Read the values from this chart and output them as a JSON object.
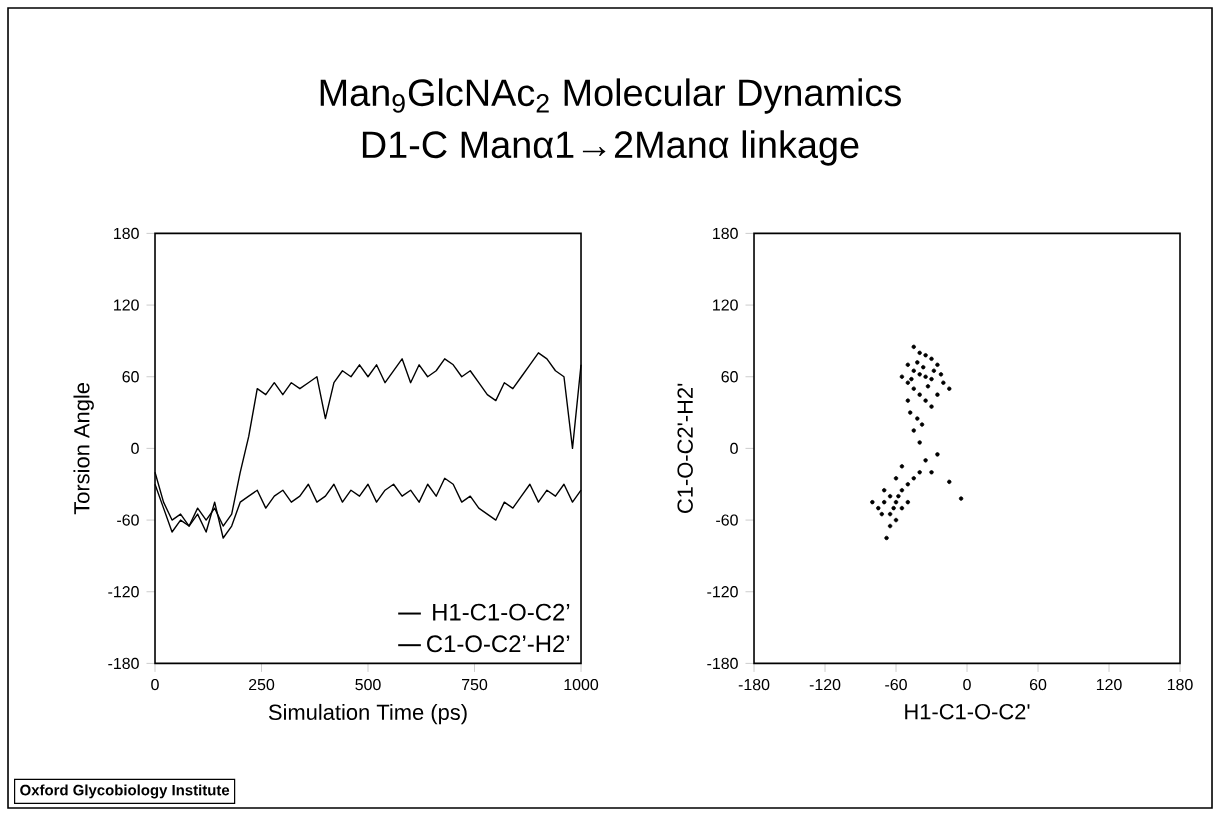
{
  "chart_data": [
    {
      "type": "line",
      "title": "Man$_{9}$GlcNAc$_{2}$ Molecular Dynamics",
      "subtitle": "D1-C  Manα1→2Manα linkage",
      "xlabel": "Simulation Time (ps)",
      "ylabel": "Torsion Angle",
      "annotations": [
        "Oxford Glycobiology Institute"
      ],
      "x": [
        0,
        20,
        40,
        60,
        80,
        100,
        120,
        140,
        160,
        180,
        200,
        220,
        240,
        260,
        280,
        300,
        320,
        340,
        360,
        380,
        400,
        420,
        440,
        460,
        480,
        500,
        520,
        540,
        560,
        580,
        600,
        620,
        640,
        660,
        680,
        700,
        720,
        740,
        760,
        780,
        800,
        820,
        840,
        860,
        880,
        900,
        920,
        940,
        960,
        980,
        1000
      ],
      "series": [
        {
          "name": "H1-C1-O-C2’",
          "color": "#000000",
          "values": [
            -30,
            -50,
            -70,
            -60,
            -65,
            -55,
            -70,
            -45,
            -75,
            -65,
            -45,
            -40,
            -35,
            -50,
            -40,
            -35,
            -45,
            -40,
            -30,
            -45,
            -40,
            -30,
            -45,
            -35,
            -40,
            -30,
            -45,
            -35,
            -30,
            -40,
            -35,
            -45,
            -30,
            -40,
            -25,
            -30,
            -45,
            -40,
            -50,
            -55,
            -60,
            -45,
            -50,
            -40,
            -30,
            -45,
            -35,
            -40,
            -30,
            -45,
            -35
          ]
        },
        {
          "name": "C1-O-C2’-H2’",
          "color": "#000000",
          "values": [
            -20,
            -45,
            -60,
            -55,
            -65,
            -50,
            -60,
            -50,
            -65,
            -55,
            -20,
            10,
            50,
            45,
            55,
            45,
            55,
            50,
            55,
            60,
            25,
            55,
            65,
            60,
            70,
            60,
            70,
            55,
            65,
            75,
            55,
            70,
            60,
            65,
            75,
            70,
            60,
            65,
            55,
            45,
            40,
            55,
            50,
            60,
            70,
            80,
            75,
            65,
            60,
            0,
            70
          ]
        }
      ],
      "xlim": [
        0,
        1000
      ],
      "xticks": [
        0,
        250,
        500,
        750,
        1000
      ],
      "ylim": [
        -180,
        180
      ],
      "yticks": [
        -180,
        -120,
        -60,
        0,
        60,
        120,
        180
      ],
      "legend": "bottom right",
      "marker": "none",
      "line_style": "solid"
    },
    {
      "type": "scatter",
      "xlabel": "H1-C1-O-C2'",
      "ylabel": "C1-O-C2'-H2'",
      "color": "#000000",
      "marker": "circle",
      "x": [
        -45,
        -40,
        -35,
        -30,
        -25,
        -50,
        -45,
        -40,
        -35,
        -30,
        -20,
        -15,
        -50,
        -45,
        -40,
        -35,
        -30,
        -25,
        -55,
        -48,
        -42,
        -38,
        -45,
        -50,
        -28,
        -22,
        -33,
        -42,
        -37,
        -47,
        -65,
        -70,
        -75,
        -60,
        -55,
        -65,
        -60,
        -70,
        -80,
        -55,
        -50,
        -45,
        -40,
        -60,
        -55,
        -65,
        -68,
        -58,
        -50,
        -62,
        -72,
        -5,
        -15,
        -25,
        -30,
        -40,
        -35
      ],
      "values": [
        85,
        80,
        78,
        75,
        70,
        70,
        65,
        62,
        60,
        58,
        55,
        50,
        55,
        50,
        45,
        40,
        35,
        45,
        60,
        30,
        25,
        20,
        15,
        40,
        65,
        62,
        52,
        72,
        68,
        58,
        -40,
        -45,
        -50,
        -45,
        -35,
        -55,
        -60,
        -35,
        -45,
        -50,
        -30,
        -25,
        -20,
        -25,
        -15,
        -65,
        -75,
        -40,
        -45,
        -50,
        -55,
        -42,
        -28,
        -5,
        -20,
        5,
        -10
      ],
      "xlim": [
        -180,
        180
      ],
      "xticks": [
        -180,
        -120,
        -60,
        0,
        60,
        120,
        180
      ],
      "ylim": [
        -180,
        180
      ],
      "yticks": [
        -180,
        -120,
        -60,
        0,
        60,
        120,
        180
      ]
    }
  ]
}
